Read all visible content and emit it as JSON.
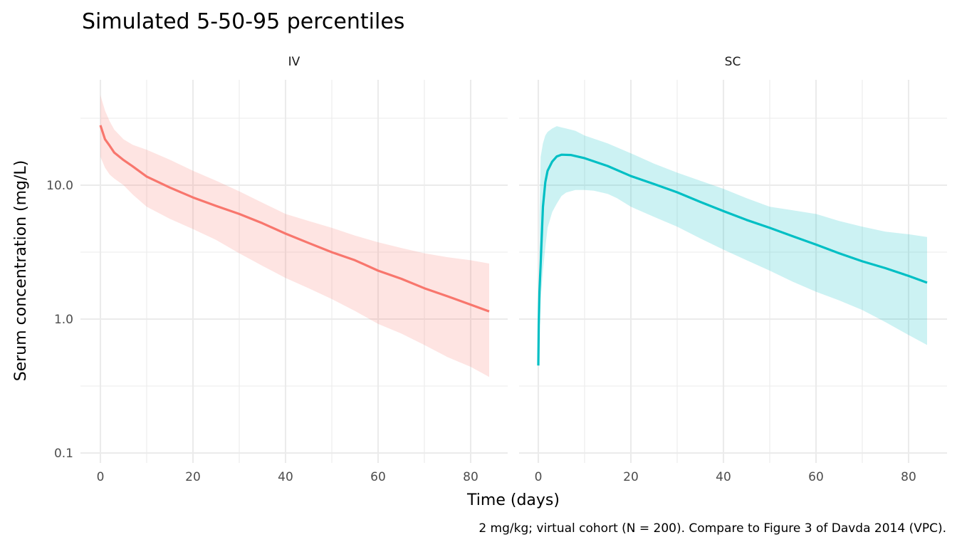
{
  "chart_data": {
    "type": "area",
    "title": "Simulated 5-50-95 percentiles",
    "xlabel": "Time (days)",
    "ylabel": "Serum concentration (mg/L)",
    "caption": "2 mg/kg; virtual cohort (N = 200). Compare to Figure 3 of Davda 2014 (VPC).",
    "y_scale": "log10",
    "ylim": [
      0.1,
      60
    ],
    "xlim": [
      -4,
      88
    ],
    "y_ticks": [
      0.1,
      1,
      10
    ],
    "y_tick_labels": [
      "0.1",
      "1.0",
      "10.0"
    ],
    "x_ticks": [
      0,
      20,
      40,
      60,
      80
    ],
    "x_tick_labels": [
      "0",
      "20",
      "40",
      "60",
      "80"
    ],
    "grid": true,
    "legend": "none",
    "facets": [
      {
        "label": "IV",
        "color": "#F8766D",
        "band_color": "#F8766D",
        "median": {
          "x": [
            0,
            1,
            2,
            3,
            5,
            7,
            10,
            15,
            20,
            25,
            30,
            35,
            40,
            45,
            50,
            55,
            60,
            65,
            70,
            75,
            80,
            84
          ],
          "y": [
            28,
            22,
            19.7,
            17.5,
            15.4,
            13.8,
            11.6,
            9.6,
            8.1,
            7.0,
            6.1,
            5.2,
            4.35,
            3.7,
            3.16,
            2.75,
            2.3,
            2.0,
            1.7,
            1.48,
            1.28,
            1.14
          ]
        },
        "p95": {
          "x": [
            0,
            1,
            2,
            3,
            5,
            7,
            10,
            15,
            20,
            25,
            30,
            35,
            40,
            45,
            50,
            55,
            60,
            65,
            70,
            75,
            80,
            84
          ],
          "y": [
            47,
            36,
            30,
            26,
            22,
            20,
            18.4,
            15.5,
            12.8,
            10.8,
            9.0,
            7.4,
            6.1,
            5.4,
            4.8,
            4.2,
            3.75,
            3.4,
            3.1,
            2.9,
            2.75,
            2.6
          ]
        },
        "p5": {
          "x": [
            0,
            1,
            2,
            3,
            5,
            7,
            10,
            15,
            20,
            25,
            30,
            35,
            40,
            45,
            50,
            55,
            60,
            65,
            70,
            75,
            80,
            84
          ],
          "y": [
            16.3,
            13.5,
            12.0,
            11.2,
            10.0,
            8.5,
            6.9,
            5.6,
            4.7,
            3.9,
            3.1,
            2.5,
            2.03,
            1.7,
            1.41,
            1.15,
            0.92,
            0.78,
            0.64,
            0.52,
            0.44,
            0.37
          ]
        }
      },
      {
        "label": "SC",
        "color": "#00BFC4",
        "band_color": "#00BFC4",
        "median": {
          "x": [
            0,
            0.1,
            0.25,
            0.5,
            1,
            1.5,
            2,
            3,
            4,
            5,
            7,
            10,
            15,
            20,
            25,
            30,
            35,
            40,
            45,
            50,
            55,
            60,
            65,
            70,
            75,
            80,
            84
          ],
          "y": [
            0.45,
            0.9,
            1.6,
            2.6,
            6.9,
            10.5,
            12.8,
            15.0,
            16.4,
            16.9,
            16.8,
            15.9,
            13.9,
            11.7,
            10.2,
            8.85,
            7.5,
            6.4,
            5.5,
            4.8,
            4.15,
            3.6,
            3.1,
            2.7,
            2.4,
            2.1,
            1.87
          ]
        },
        "p95": {
          "x": [
            0.25,
            0.5,
            1,
            1.5,
            2,
            3,
            4,
            5,
            6,
            8,
            10,
            15,
            20,
            25,
            30,
            35,
            40,
            45,
            50,
            55,
            60,
            65,
            70,
            75,
            80,
            84
          ],
          "y": [
            6.0,
            16.3,
            20.5,
            23.5,
            25,
            26.5,
            27.6,
            27.0,
            26.5,
            25.5,
            23.5,
            20.5,
            17.3,
            14.5,
            12.4,
            10.8,
            9.4,
            8.0,
            6.9,
            6.5,
            6.1,
            5.4,
            4.9,
            4.5,
            4.3,
            4.1
          ]
        },
        "p5": {
          "x": [
            0.25,
            0.5,
            1,
            1.5,
            2,
            3,
            4,
            5,
            6,
            8,
            10,
            12,
            15,
            17,
            20,
            25,
            30,
            35,
            40,
            45,
            50,
            55,
            60,
            65,
            70,
            75,
            80,
            84
          ],
          "y": [
            0.8,
            1.4,
            2.3,
            3.4,
            4.8,
            6.3,
            7.3,
            8.3,
            8.8,
            9.2,
            9.2,
            9.1,
            8.6,
            8.0,
            6.9,
            5.8,
            4.9,
            4.0,
            3.3,
            2.75,
            2.3,
            1.9,
            1.6,
            1.38,
            1.17,
            0.95,
            0.76,
            0.64
          ]
        }
      }
    ]
  }
}
